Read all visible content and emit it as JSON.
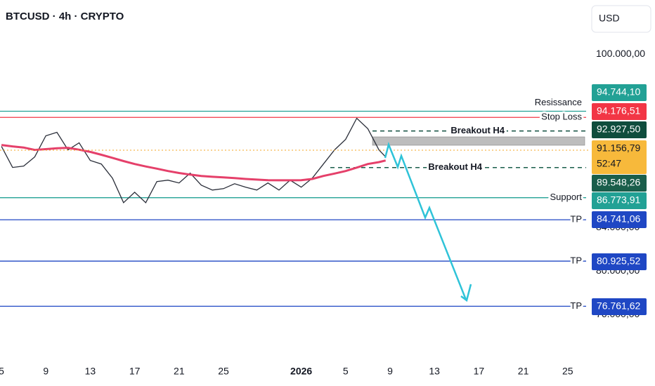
{
  "header": {
    "symbol": "BTCUSD · 4h · CRYPTO",
    "currency": "USD"
  },
  "chart_data": {
    "type": "line",
    "x": [
      0,
      1,
      2,
      3,
      4,
      5,
      6,
      7,
      8,
      9,
      10,
      11,
      12,
      13,
      14,
      15,
      16,
      17,
      18,
      19,
      20,
      21,
      22,
      23,
      24,
      25,
      26,
      27,
      28,
      29,
      30,
      31,
      32,
      33,
      34,
      34.6
    ],
    "series": [
      {
        "name": "BTCUSD",
        "color": "#2a2e39",
        "values": [
          91500,
          89560,
          89690,
          90530,
          92480,
          92800,
          91180,
          91830,
          90210,
          89880,
          88580,
          86310,
          87280,
          86310,
          88260,
          88390,
          88130,
          89040,
          87930,
          87480,
          87610,
          88060,
          87740,
          87480,
          88130,
          87480,
          88390,
          87740,
          88580,
          89880,
          91180,
          92150,
          94100,
          93130,
          91180,
          90530
        ]
      },
      {
        "name": "MA",
        "color": "#e5406a",
        "values": [
          91630,
          91500,
          91400,
          91180,
          91250,
          91330,
          91370,
          91200,
          91000,
          90730,
          90450,
          90150,
          89880,
          89650,
          89450,
          89230,
          89050,
          88900,
          88780,
          88700,
          88640,
          88580,
          88500,
          88440,
          88390,
          88380,
          88380,
          88390,
          88500,
          88780,
          89000,
          89230,
          89550,
          89880,
          90050,
          90200
        ]
      }
    ],
    "xlim": [
      -0.13,
      53.04
    ],
    "xticks": [
      {
        "value": 0,
        "label": "5"
      },
      {
        "value": 4,
        "label": "9"
      },
      {
        "value": 8,
        "label": "13"
      },
      {
        "value": 12,
        "label": "17"
      },
      {
        "value": 16,
        "label": "21"
      },
      {
        "value": 20,
        "label": "25"
      },
      {
        "value": 27,
        "label": "2026"
      },
      {
        "value": 31,
        "label": "5"
      },
      {
        "value": 35,
        "label": "9"
      },
      {
        "value": 39,
        "label": "13"
      },
      {
        "value": 43,
        "label": "17"
      },
      {
        "value": 47,
        "label": "21"
      },
      {
        "value": 51,
        "label": "25"
      }
    ],
    "ylim": [
      72000,
      105000
    ],
    "yticks": [
      {
        "value": 100000,
        "label": "100.000,00"
      },
      {
        "value": 84000,
        "label": "84.000,00"
      },
      {
        "value": 80000,
        "label": "80.000,00"
      },
      {
        "value": 76000,
        "label": "76.000,00"
      }
    ],
    "levels": [
      {
        "label": "Resissance",
        "value": 94744.1,
        "value_label": "94.744,10",
        "color": "#22a195"
      },
      {
        "label": "Stop Loss",
        "value": 94176.51,
        "value_label": "94.176,51",
        "color": "#f23645"
      },
      {
        "label": "Breakout H4",
        "value": 92927.5,
        "value_label": "92.927,50",
        "color": "#0f4d3d"
      },
      {
        "label": "Breakout H4",
        "value": 89548.26,
        "value_label": "89.548,26",
        "color": "#1a5e4b"
      },
      {
        "label": "Support",
        "value": 86773.91,
        "value_label": "86.773,91",
        "color": "#22a195"
      },
      {
        "label": "TP",
        "value": 84741.06,
        "value_label": "84.741,06",
        "color": "#1f47c4"
      },
      {
        "label": "TP",
        "value": 80925.52,
        "value_label": "80.925,52",
        "color": "#1f47c4"
      },
      {
        "label": "TP",
        "value": 76761.62,
        "value_label": "76.761,62",
        "color": "#1f47c4"
      }
    ],
    "current_price": {
      "value": 91156.79,
      "value_label": "91.156,79",
      "countdown": "52:47"
    }
  }
}
